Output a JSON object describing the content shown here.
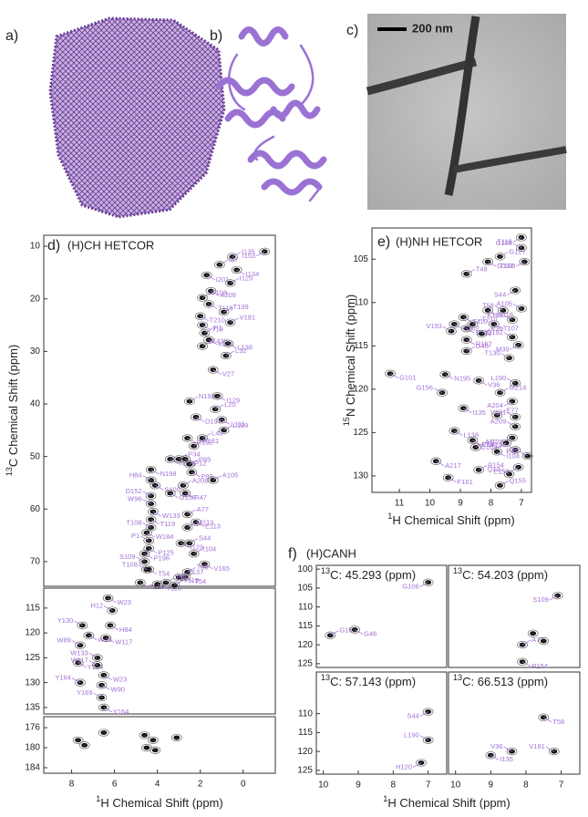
{
  "panels": {
    "a": {
      "label": "a)"
    },
    "b": {
      "label": "b)"
    },
    "c": {
      "label": "c)",
      "scale_bar": "200 nm"
    },
    "d": {
      "label": "d)",
      "title": "(H)CH HETCOR",
      "x_label": {
        "sup": "1",
        "text": "H Chemical Shift (ppm)"
      },
      "y_label": {
        "sup": "13",
        "text": "C Chemical Shift (ppm)"
      },
      "xlim": [
        9.3,
        -1.5
      ],
      "xticks": [
        8,
        6,
        4,
        2,
        0
      ],
      "sections": [
        {
          "ylim": [
            7.9,
            74.7
          ],
          "yticks": [
            10,
            20,
            30,
            40,
            50,
            60,
            70
          ],
          "peaks": [
            {
              "label": "I153",
              "x": -1.0,
              "y": 11
            },
            {
              "label": "I135",
              "x": 0.5,
              "y": 12
            },
            {
              "label": "I134",
              "x": 0.3,
              "y": 14.5
            },
            {
              "label": "I37",
              "x": 1.1,
              "y": 13.5
            },
            {
              "label": "I201",
              "x": 1.7,
              "y": 15.5
            },
            {
              "label": "I129",
              "x": 0.6,
              "y": 17
            },
            {
              "label": "A209",
              "x": 1.5,
              "y": 18.5
            },
            {
              "label": "T108",
              "x": 1.9,
              "y": 19.8
            },
            {
              "label": "T119",
              "x": 1.6,
              "y": 21
            },
            {
              "label": "T139",
              "x": 0.9,
              "y": 22.5
            },
            {
              "label": "T210",
              "x": 2.0,
              "y": 23.3
            },
            {
              "label": "V181",
              "x": 0.6,
              "y": 24.5
            },
            {
              "label": "T19",
              "x": 1.9,
              "y": 25
            },
            {
              "label": "P1",
              "x": 1.8,
              "y": 26.5
            },
            {
              "label": "K140",
              "x": 1.6,
              "y": 27.8
            },
            {
              "label": "K430",
              "x": 1.9,
              "y": 29
            },
            {
              "label": "L138",
              "x": 0.7,
              "y": 28.5
            },
            {
              "label": "L32",
              "x": 0.8,
              "y": 30.8
            },
            {
              "label": "V27",
              "x": 1.4,
              "y": 33.5
            },
            {
              "label": "N193",
              "x": 2.5,
              "y": 39.5
            },
            {
              "label": "I129",
              "x": 1.2,
              "y": 38.5
            },
            {
              "label": "L20",
              "x": 1.3,
              "y": 41
            },
            {
              "label": "L111",
              "x": 1.0,
              "y": 43
            },
            {
              "label": "L199",
              "x": 0.9,
              "y": 45
            },
            {
              "label": "D197",
              "x": 2.2,
              "y": 42.5
            },
            {
              "label": "L43",
              "x": 1.9,
              "y": 46.5
            },
            {
              "label": "R132",
              "x": 2.6,
              "y": 46.5
            },
            {
              "label": "K131",
              "x": 2.3,
              "y": 48
            },
            {
              "label": "N121",
              "x": 3.4,
              "y": 50.5
            },
            {
              "label": "P34",
              "x": 3.0,
              "y": 50.5
            },
            {
              "label": "P12",
              "x": 2.7,
              "y": 50.5
            },
            {
              "label": "P85",
              "x": 2.5,
              "y": 51.5
            },
            {
              "label": "P99",
              "x": 2.4,
              "y": 53
            },
            {
              "label": "A105",
              "x": 1.4,
              "y": 54.5
            },
            {
              "label": "N198",
              "x": 4.3,
              "y": 52.5
            },
            {
              "label": "H84",
              "x": 4.3,
              "y": 54.5
            },
            {
              "label": "S109",
              "x": 4.1,
              "y": 55.5
            },
            {
              "label": "A208",
              "x": 2.8,
              "y": 55.5
            },
            {
              "label": "R47",
              "x": 2.7,
              "y": 57
            },
            {
              "label": "D152",
              "x": 4.3,
              "y": 57.5
            },
            {
              "label": "G158",
              "x": 3.4,
              "y": 57
            },
            {
              "label": "W96",
              "x": 4.3,
              "y": 59
            },
            {
              "label": "W133",
              "x": 4.2,
              "y": 60.5
            },
            {
              "label": "A77",
              "x": 2.6,
              "y": 61
            },
            {
              "label": "T119",
              "x": 4.3,
              "y": 62
            },
            {
              "label": "T108",
              "x": 4.3,
              "y": 63.5
            },
            {
              "label": "E113",
              "x": 2.2,
              "y": 62.5
            },
            {
              "label": "M213",
              "x": 2.6,
              "y": 63.5
            },
            {
              "label": "W184",
              "x": 4.5,
              "y": 64.5
            },
            {
              "label": "P1",
              "x": 4.4,
              "y": 66
            },
            {
              "label": "P125",
              "x": 4.4,
              "y": 67.5
            },
            {
              "label": "S44",
              "x": 2.5,
              "y": 66.5
            },
            {
              "label": "I129",
              "x": 2.9,
              "y": 66.5
            },
            {
              "label": "I104",
              "x": 2.3,
              "y": 68.5
            },
            {
              "label": "P196",
              "x": 4.6,
              "y": 68.5
            },
            {
              "label": "S109",
              "x": 4.6,
              "y": 70
            },
            {
              "label": "T54",
              "x": 4.4,
              "y": 71.5
            },
            {
              "label": "T108",
              "x": 4.5,
              "y": 71.5
            },
            {
              "label": "V165",
              "x": 1.8,
              "y": 70.5
            },
            {
              "label": "T86",
              "x": 2.6,
              "y": 72
            },
            {
              "label": "T54",
              "x": 2.7,
              "y": 73
            },
            {
              "label": "T137",
              "x": 3.0,
              "y": 73
            },
            {
              "label": "T210",
              "x": 4.8,
              "y": 74
            },
            {
              "label": "T58",
              "x": 3.6,
              "y": 74
            },
            {
              "label": "T110",
              "x": 4.0,
              "y": 74.3
            },
            {
              "label": "T119",
              "x": 3.2,
              "y": 74.5
            }
          ]
        },
        {
          "ylim": [
            111,
            136.3
          ],
          "yticks": [
            115,
            120,
            125,
            130,
            135
          ],
          "peaks": [
            {
              "label": "W23",
              "x": 6.3,
              "y": 113
            },
            {
              "label": "H12",
              "x": 6.1,
              "y": 115.5
            },
            {
              "label": "H84",
              "x": 6.2,
              "y": 118.5
            },
            {
              "label": "Y130",
              "x": 7.5,
              "y": 118.5
            },
            {
              "label": "W23",
              "x": 7.2,
              "y": 120.5
            },
            {
              "label": "W89",
              "x": 7.6,
              "y": 122.5
            },
            {
              "label": "W117",
              "x": 6.4,
              "y": 121
            },
            {
              "label": "W133",
              "x": 6.8,
              "y": 125
            },
            {
              "label": "Y184",
              "x": 7.7,
              "y": 126
            },
            {
              "label": "W117",
              "x": 6.8,
              "y": 126.5
            },
            {
              "label": "W23",
              "x": 6.5,
              "y": 128.5
            },
            {
              "label": "Y164",
              "x": 7.6,
              "y": 130
            },
            {
              "label": "W90",
              "x": 6.6,
              "y": 130.5
            },
            {
              "label": "Y169",
              "x": 6.6,
              "y": 133
            },
            {
              "label": "Y164",
              "x": 6.5,
              "y": 135
            }
          ]
        },
        {
          "ylim": [
            173.8,
            185.1
          ],
          "yticks": [
            176,
            180,
            184
          ],
          "peaks": [
            {
              "x": 7.7,
              "y": 178.5
            },
            {
              "x": 7.4,
              "y": 179.5
            },
            {
              "x": 6.5,
              "y": 177
            },
            {
              "x": 4.6,
              "y": 177.5
            },
            {
              "x": 4.2,
              "y": 178.5
            },
            {
              "x": 4.5,
              "y": 180
            },
            {
              "x": 4.1,
              "y": 180.5
            },
            {
              "x": 3.1,
              "y": 178
            }
          ]
        }
      ]
    },
    "e": {
      "label": "e)",
      "title": "(H)NH HETCOR",
      "x_label": {
        "sup": "1",
        "text": "H Chemical Shift (ppm)"
      },
      "y_label": {
        "sup": "15",
        "text": "N Chemical Shift (ppm)"
      },
      "xlim": [
        11.9,
        6.67
      ],
      "xticks": [
        11,
        10,
        9,
        8,
        7
      ],
      "ylim": [
        101.4,
        131.9
      ],
      "yticks": [
        105,
        110,
        115,
        120,
        125,
        130
      ],
      "peaks": [
        {
          "label": "T119",
          "x": 7.0,
          "y": 102.5
        },
        {
          "label": "G106",
          "x": 7.0,
          "y": 103.7
        },
        {
          "label": "G137",
          "x": 8.1,
          "y": 105.3
        },
        {
          "label": "G127",
          "x": 7.7,
          "y": 104.7
        },
        {
          "label": "T108",
          "x": 6.9,
          "y": 105.3
        },
        {
          "label": "T48",
          "x": 8.8,
          "y": 106.7
        },
        {
          "label": "S44",
          "x": 7.2,
          "y": 108.6
        },
        {
          "label": "T58",
          "x": 7.6,
          "y": 110.9
        },
        {
          "label": "G116",
          "x": 8.1,
          "y": 110.9
        },
        {
          "label": "A105",
          "x": 7.0,
          "y": 110.7
        },
        {
          "label": "T110",
          "x": 8.9,
          "y": 111.7
        },
        {
          "label": "K109",
          "x": 7.3,
          "y": 112
        },
        {
          "label": "T107",
          "x": 7.9,
          "y": 112.5
        },
        {
          "label": "T210",
          "x": 8.6,
          "y": 112.5
        },
        {
          "label": "V126",
          "x": 8.8,
          "y": 113
        },
        {
          "label": "K30",
          "x": 8.3,
          "y": 113.6
        },
        {
          "label": "S102",
          "x": 9.2,
          "y": 112.5
        },
        {
          "label": "V193",
          "x": 9.3,
          "y": 113.3
        },
        {
          "label": "R162",
          "x": 8.8,
          "y": 114.3
        },
        {
          "label": "Q192",
          "x": 7.3,
          "y": 114
        },
        {
          "label": "M39",
          "x": 7.1,
          "y": 114.9
        },
        {
          "label": "G46",
          "x": 8.8,
          "y": 115.6
        },
        {
          "label": "G101",
          "x": 11.3,
          "y": 118.2
        },
        {
          "label": "T130",
          "x": 7.4,
          "y": 116.4
        },
        {
          "label": "N195",
          "x": 9.5,
          "y": 118.3
        },
        {
          "label": "G156",
          "x": 9.6,
          "y": 120.4
        },
        {
          "label": "V36",
          "x": 8.4,
          "y": 119
        },
        {
          "label": "L190",
          "x": 7.2,
          "y": 119.3
        },
        {
          "label": "I135",
          "x": 8.9,
          "y": 122.2
        },
        {
          "label": "M214",
          "x": 7.7,
          "y": 120.4
        },
        {
          "label": "A204",
          "x": 7.3,
          "y": 121.4
        },
        {
          "label": "E77",
          "x": 7.8,
          "y": 123
        },
        {
          "label": "L138",
          "x": 9.2,
          "y": 124.8
        },
        {
          "label": "V181",
          "x": 7.2,
          "y": 123.2
        },
        {
          "label": "E98",
          "x": 8.6,
          "y": 125.9
        },
        {
          "label": "A209",
          "x": 7.2,
          "y": 124.3
        },
        {
          "label": "H120",
          "x": 7.3,
          "y": 125.6
        },
        {
          "label": "A77",
          "x": 8.5,
          "y": 126.7
        },
        {
          "label": "D103",
          "x": 7.5,
          "y": 126.2
        },
        {
          "label": "A194",
          "x": 7.2,
          "y": 127
        },
        {
          "label": "I104",
          "x": 7.8,
          "y": 127.2
        },
        {
          "label": "E45",
          "x": 6.8,
          "y": 127.7
        },
        {
          "label": "A217",
          "x": 9.8,
          "y": 128.3
        },
        {
          "label": "R154",
          "x": 8.4,
          "y": 129.3
        },
        {
          "label": "E159",
          "x": 7.1,
          "y": 129
        },
        {
          "label": "Q13",
          "x": 7.4,
          "y": 129.8
        },
        {
          "label": "F161",
          "x": 9.4,
          "y": 130.2
        },
        {
          "label": "Q155",
          "x": 7.7,
          "y": 131.1
        }
      ]
    },
    "f": {
      "label": "f)",
      "title": "(H)CANH",
      "x_label": {
        "sup": "1",
        "text": "H Chemical Shift (ppm)"
      },
      "subpanels": [
        {
          "title": {
            "sup": "13",
            "text": "C: 45.293  (ppm)"
          },
          "xlim": [
            10.2,
            6.47
          ],
          "ylim": [
            99,
            126
          ],
          "yticks": [
            100,
            105,
            110,
            115,
            120,
            125
          ],
          "peaks": [
            {
              "label": "G106",
              "x": 7.0,
              "y": 103.5
            },
            {
              "label": "G156",
              "x": 9.8,
              "y": 117.5
            },
            {
              "label": "G46",
              "x": 9.1,
              "y": 116
            }
          ]
        },
        {
          "title": {
            "sup": "13",
            "text": "C: 54.203  (ppm)"
          },
          "xlim": [
            10.2,
            6.47
          ],
          "ylim": [
            99,
            126
          ],
          "peaks": [
            {
              "label": "S109",
              "x": 7.1,
              "y": 107
            },
            {
              "label": "A77",
              "x": 8.1,
              "y": 120
            },
            {
              "label": "R154",
              "x": 8.1,
              "y": 124.5
            },
            {
              "x": 7.8,
              "y": 117
            },
            {
              "x": 7.5,
              "y": 119
            }
          ]
        },
        {
          "title": {
            "sup": "13",
            "text": "C: 57.143  (ppm)"
          },
          "xlim": [
            10.2,
            6.47
          ],
          "ylim": [
            99,
            126
          ],
          "yticks": [
            110,
            115,
            120,
            125
          ],
          "xticks": [
            10,
            9,
            8,
            7
          ],
          "peaks": [
            {
              "label": "S44",
              "x": 7.0,
              "y": 109.5
            },
            {
              "label": "L190",
              "x": 7.0,
              "y": 117
            },
            {
              "label": "H120",
              "x": 7.2,
              "y": 123
            }
          ]
        },
        {
          "title": {
            "sup": "13",
            "text": "C: 66.513  (ppm)"
          },
          "xlim": [
            10.2,
            6.47
          ],
          "ylim": [
            99,
            126
          ],
          "xticks": [
            10,
            9,
            8,
            7
          ],
          "peaks": [
            {
              "label": "T58",
              "x": 7.5,
              "y": 111
            },
            {
              "label": "V36",
              "x": 8.4,
              "y": 120
            },
            {
              "label": "I135",
              "x": 9.0,
              "y": 121
            },
            {
              "label": "V181",
              "x": 7.2,
              "y": 120
            }
          ]
        }
      ]
    }
  }
}
